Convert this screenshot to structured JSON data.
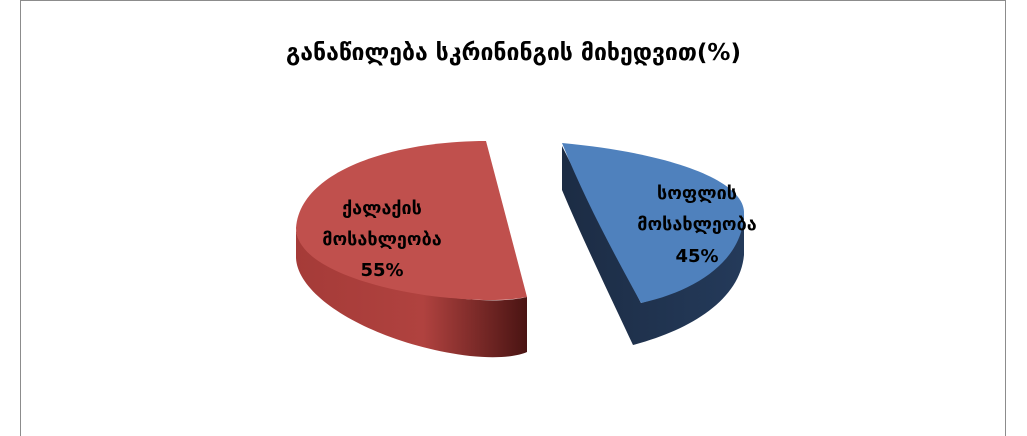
{
  "chart_data": {
    "type": "pie",
    "title": "განაწილება სკრინინგის მიხედვით(%)",
    "slices": [
      {
        "label_lines": [
          "სოფლის",
          "მოსახლეობა"
        ],
        "value_text": "45%",
        "value": 45,
        "color": "#4f81bd"
      },
      {
        "label_lines": [
          "ქალაქის",
          "მოსახლეობა"
        ],
        "value_text": "55%",
        "value": 55,
        "color": "#c0504d"
      }
    ],
    "style": "3d-exploded",
    "legend": "none"
  }
}
